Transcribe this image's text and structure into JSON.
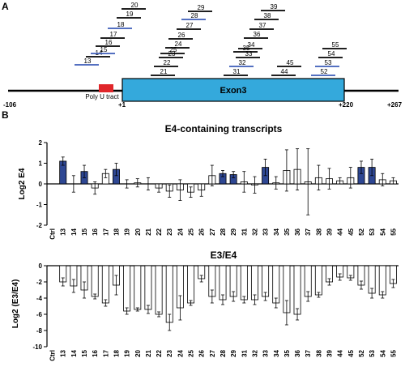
{
  "colors": {
    "highlight": "#2e4793",
    "oligo_blue": "#3b5bb8",
    "exon": "#34a9dc",
    "polyu": "#e0262a"
  },
  "panel_a": {
    "label": "A",
    "exon_label": "Exon3",
    "polyu_label": "Poly U tract",
    "coords": [
      "-106",
      "+1",
      "+220",
      "+267"
    ],
    "oligos": [
      {
        "id": "13",
        "blue": true
      },
      {
        "id": "14",
        "blue": false
      },
      {
        "id": "15",
        "blue": true
      },
      {
        "id": "16",
        "blue": false
      },
      {
        "id": "17",
        "blue": false
      },
      {
        "id": "18",
        "blue": true
      },
      {
        "id": "19",
        "blue": false
      },
      {
        "id": "20",
        "blue": false
      },
      {
        "id": "21",
        "blue": false
      },
      {
        "id": "22",
        "blue": false
      },
      {
        "id": "23",
        "blue": false
      },
      {
        "id": "24",
        "blue": false
      },
      {
        "id": "25",
        "blue": false
      },
      {
        "id": "26",
        "blue": false
      },
      {
        "id": "27",
        "blue": false
      },
      {
        "id": "28",
        "blue": true
      },
      {
        "id": "29",
        "blue": false
      },
      {
        "id": "31",
        "blue": false
      },
      {
        "id": "32",
        "blue": true
      },
      {
        "id": "33",
        "blue": false
      },
      {
        "id": "34",
        "blue": false
      },
      {
        "id": "35",
        "blue": false
      },
      {
        "id": "36",
        "blue": false
      },
      {
        "id": "37",
        "blue": false
      },
      {
        "id": "38",
        "blue": false
      },
      {
        "id": "39",
        "blue": false
      },
      {
        "id": "44",
        "blue": false
      },
      {
        "id": "45",
        "blue": false
      },
      {
        "id": "52",
        "blue": true
      },
      {
        "id": "53",
        "blue": true
      },
      {
        "id": "54",
        "blue": false
      },
      {
        "id": "55",
        "blue": false
      }
    ]
  },
  "chart_data": [
    {
      "type": "bar",
      "panel": "B",
      "title": "E4-containing transcripts",
      "ylabel": "Log2 E4",
      "ylim": [
        -2,
        2
      ],
      "yticks": [
        -2,
        -1,
        0,
        1,
        2
      ],
      "categories": [
        "Ctrl",
        "13",
        "14",
        "15",
        "16",
        "17",
        "18",
        "19",
        "20",
        "21",
        "22",
        "23",
        "24",
        "25",
        "26",
        "27",
        "28",
        "29",
        "31",
        "32",
        "33",
        "34",
        "35",
        "36",
        "37",
        "38",
        "39",
        "44",
        "45",
        "52",
        "53",
        "54",
        "55"
      ],
      "values": [
        0,
        1.1,
        0,
        0.6,
        -0.2,
        0.5,
        0.7,
        0,
        0.05,
        0,
        -0.2,
        -0.35,
        -0.3,
        -0.4,
        -0.3,
        0.4,
        0.5,
        0.45,
        0.1,
        -0.05,
        0.8,
        0.05,
        0.65,
        0.7,
        0.1,
        0.3,
        0.25,
        0.15,
        0.3,
        0.8,
        0.8,
        0.2,
        0.15
      ],
      "errors": [
        0,
        0.2,
        0.4,
        0.3,
        0.3,
        0.2,
        0.3,
        0.2,
        0.2,
        0.3,
        0.2,
        0.3,
        0.5,
        0.25,
        0.3,
        0.5,
        0.15,
        0.15,
        0.5,
        0.4,
        0.4,
        0.3,
        1.0,
        1.0,
        1.6,
        0.6,
        0.5,
        0.15,
        0.5,
        0.3,
        0.4,
        0.3,
        0.15
      ],
      "highlight": [
        false,
        true,
        false,
        true,
        false,
        false,
        true,
        false,
        false,
        false,
        false,
        false,
        false,
        false,
        false,
        false,
        true,
        true,
        false,
        false,
        true,
        false,
        false,
        false,
        false,
        false,
        false,
        false,
        false,
        true,
        true,
        false,
        false
      ]
    },
    {
      "type": "bar",
      "title": "E3/E4",
      "ylabel": "Log2 (E3/E4)",
      "ylim": [
        -10,
        0
      ],
      "yticks": [
        -10,
        -8,
        -6,
        -4,
        -2,
        0
      ],
      "categories": [
        "Ctrl",
        "13",
        "14",
        "15",
        "16",
        "17",
        "18",
        "19",
        "20",
        "21",
        "22",
        "23",
        "24",
        "25",
        "26",
        "27",
        "28",
        "29",
        "31",
        "32",
        "33",
        "34",
        "35",
        "36",
        "37",
        "38",
        "39",
        "44",
        "45",
        "52",
        "53",
        "54",
        "55"
      ],
      "values": [
        0,
        -2,
        -2.5,
        -3,
        -3.8,
        -4.6,
        -2.4,
        -5.6,
        -5.4,
        -5.4,
        -6,
        -7,
        -5.2,
        -4.6,
        -1.6,
        -3.8,
        -4.2,
        -3.8,
        -4.2,
        -4.2,
        -3.8,
        -4.6,
        -5.8,
        -6,
        -3.8,
        -3.6,
        -2,
        -1.4,
        -1.5,
        -2.4,
        -3.4,
        -3.6,
        -2.2
      ],
      "errors": [
        0,
        0.5,
        0.8,
        1.0,
        0.3,
        0.4,
        1.2,
        0.4,
        0.2,
        0.5,
        0.3,
        1.0,
        1.5,
        0.3,
        0.4,
        0.8,
        0.6,
        0.6,
        0.4,
        0.6,
        0.5,
        0.6,
        1.5,
        0.7,
        0.6,
        0.3,
        0.4,
        0.4,
        0.3,
        0.5,
        0.6,
        0.4,
        0.5
      ]
    }
  ]
}
